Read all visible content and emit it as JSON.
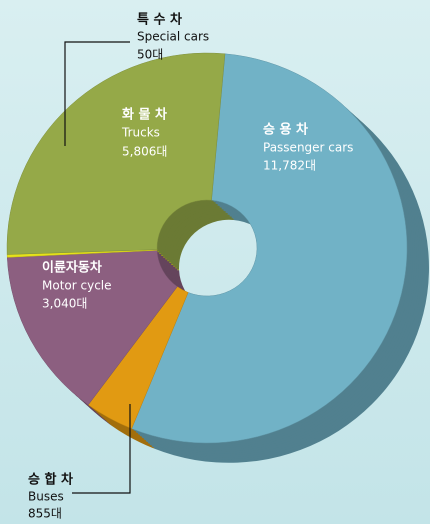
{
  "chart_data": {
    "type": "pie",
    "donut": true,
    "categories": [
      "승 용 차",
      "승 합 차",
      "이륜자동차",
      "특 수 차",
      "화 물 차"
    ],
    "labels_en": [
      "Passenger cars",
      "Buses",
      "Motor cycle",
      "Special cars",
      "Trucks"
    ],
    "values": [
      11782,
      855,
      3040,
      50,
      5806
    ],
    "value_labels": [
      "11,782대",
      "855대",
      "3,040대",
      "50대",
      "5,806대"
    ],
    "colors": [
      "#71b2c6",
      "#e19a12",
      "#8c5f80",
      "#e6e21a",
      "#95a948"
    ]
  }
}
